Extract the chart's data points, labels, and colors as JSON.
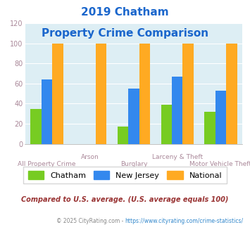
{
  "title_line1": "2019 Chatham",
  "title_line2": "Property Crime Comparison",
  "categories": [
    "All Property Crime",
    "Arson",
    "Burglary",
    "Larceny & Theft",
    "Motor Vehicle Theft"
  ],
  "chatham": [
    35,
    0,
    17,
    39,
    32
  ],
  "new_jersey": [
    64,
    0,
    55,
    67,
    53
  ],
  "national": [
    100,
    100,
    100,
    100,
    100
  ],
  "chatham_color": "#77cc22",
  "nj_color": "#3388ee",
  "national_color": "#ffaa22",
  "bg_color": "#ddeef4",
  "ylim": [
    0,
    120
  ],
  "yticks": [
    0,
    20,
    40,
    60,
    80,
    100,
    120
  ],
  "xlabel_top": [
    "",
    "Arson",
    "",
    "Larceny & Theft",
    ""
  ],
  "xlabel_bot": [
    "All Property Crime",
    "",
    "Burglary",
    "",
    "Motor Vehicle Theft"
  ],
  "legend_labels": [
    "Chatham",
    "New Jersey",
    "National"
  ],
  "footnote1": "Compared to U.S. average. (U.S. average equals 100)",
  "footnote2_prefix": "© 2025 CityRating.com - ",
  "footnote2_link": "https://www.cityrating.com/crime-statistics/",
  "title_color": "#1a66cc",
  "xlabel_color": "#aa8899",
  "footnote1_color": "#993333",
  "footnote2_color": "#888888",
  "footnote2_link_color": "#3388cc"
}
